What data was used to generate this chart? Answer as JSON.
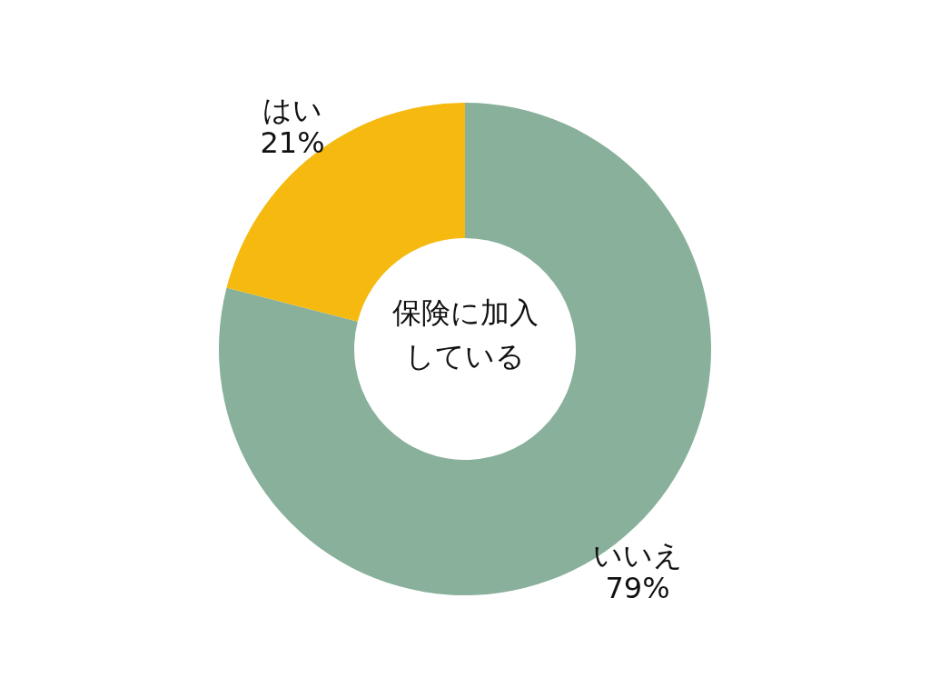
{
  "chart_data": {
    "type": "donut",
    "title": "保険に加入している",
    "categories": [
      "いいえ",
      "はい"
    ],
    "values": [
      79,
      21
    ],
    "value_labels": [
      "79%",
      "21%"
    ],
    "colors": [
      "#88b09a",
      "#f5b90f"
    ]
  }
}
